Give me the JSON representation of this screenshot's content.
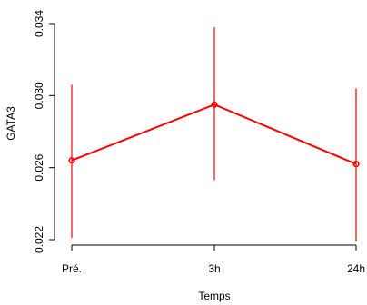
{
  "chart_data": {
    "type": "line",
    "xlabel": "Temps",
    "ylabel": "GATA3",
    "categories": [
      "Pré.",
      "3h",
      "24h"
    ],
    "ylim": [
      0.022,
      0.034
    ],
    "y_ticks": [
      0.022,
      0.026,
      0.03,
      0.034
    ],
    "y_tick_labels": [
      "0.022",
      "0.026",
      "0.030",
      "0.034"
    ],
    "series": [
      {
        "values": [
          0.0264,
          0.0295,
          0.0262
        ],
        "lower": [
          0.0221,
          0.0253,
          0.0219
        ],
        "upper": [
          0.0306,
          0.0338,
          0.0304
        ],
        "color": "#ff0000"
      }
    ],
    "grid": false,
    "legend": "none"
  }
}
